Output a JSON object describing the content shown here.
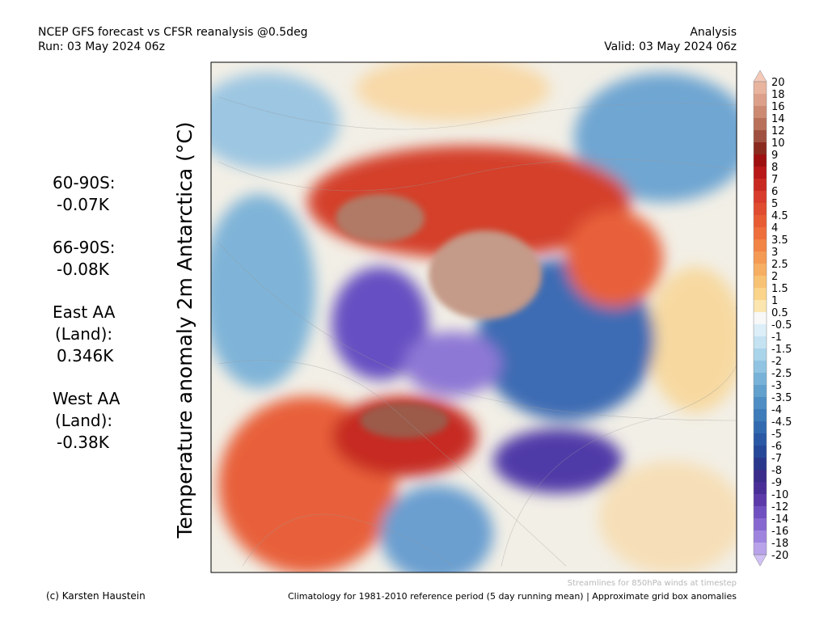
{
  "header": {
    "title": "NCEP GFS forecast vs CFSR reanalysis @0.5deg",
    "run": "Run: 03 May 2024 06z",
    "kind": "Analysis",
    "valid": "Valid: 03 May 2024 06z"
  },
  "map": {
    "axis_label": "Temperature anomaly 2m Antarctica (°C)"
  },
  "stats": [
    {
      "lines": [
        "60-90S:"
      ],
      "value": "-0.07K"
    },
    {
      "lines": [
        "66-90S:"
      ],
      "value": "-0.08K"
    },
    {
      "lines": [
        "East AA",
        "(Land):"
      ],
      "value": "0.346K"
    },
    {
      "lines": [
        "West AA",
        "(Land):"
      ],
      "value": "-0.38K"
    }
  ],
  "colorbar": {
    "levels": [
      20,
      18,
      16,
      14,
      12,
      10,
      9,
      8,
      7,
      6,
      5,
      4.5,
      4,
      3.5,
      3,
      2.5,
      2,
      1.5,
      1,
      0.5,
      -0.5,
      -1,
      -1.5,
      -2,
      -2.5,
      -3,
      -3.5,
      -4,
      -4.5,
      -5,
      -6,
      -7,
      -8,
      -9,
      -10,
      -12,
      -14,
      -16,
      -18,
      -20
    ],
    "top_color": "#f4c9b8",
    "bottom_color": "#d0c0f4",
    "colors": [
      "#e8b49e",
      "#dca08a",
      "#cc8a72",
      "#b8705a",
      "#a05040",
      "#8a2a1e",
      "#9e1010",
      "#b81818",
      "#c82a22",
      "#d83c2c",
      "#e04c30",
      "#e85c34",
      "#ee6e3c",
      "#f28446",
      "#f49a54",
      "#f6ae62",
      "#f8c274",
      "#fad48a",
      "#fce6b0",
      "#f8f8f8",
      "#dceef8",
      "#c4e2f2",
      "#aad4ea",
      "#90c4e2",
      "#78b2d8",
      "#62a0ce",
      "#4e8ec4",
      "#3e7cba",
      "#326ab0",
      "#2a58a4",
      "#264898",
      "#2a388c",
      "#3a2c8a",
      "#4a2e98",
      "#5c3aaa",
      "#7050c0",
      "#8668d0",
      "#9e84de",
      "#b8a2ea"
    ]
  },
  "footer": {
    "streamlines": "Streamlines for 850hPa winds at timestep",
    "credit": "(c) Karsten Haustein",
    "climatology": "Climatology for 1981-2010 reference period (5 day running mean) | Approximate grid box anomalies"
  }
}
